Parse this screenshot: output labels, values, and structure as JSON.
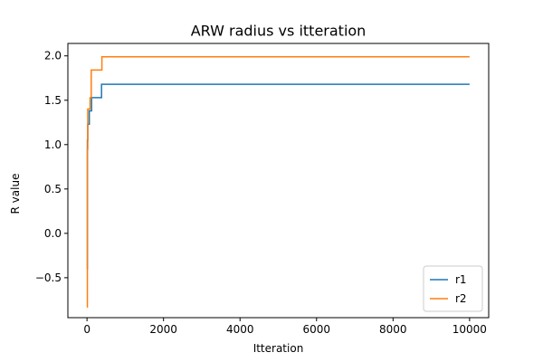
{
  "chart_data": {
    "type": "line",
    "title": "ARW radius vs itteration",
    "xlabel": "Itteration",
    "ylabel": "R value",
    "xlim": [
      -500,
      10500
    ],
    "ylim": [
      -0.95,
      2.14
    ],
    "xticks": [
      0,
      2000,
      4000,
      6000,
      8000,
      10000
    ],
    "xtick_labels": [
      "0",
      "2000",
      "4000",
      "6000",
      "8000",
      "10000"
    ],
    "yticks": [
      -0.5,
      0.0,
      0.5,
      1.0,
      1.5,
      2.0
    ],
    "ytick_labels": [
      "−0.5",
      "0.0",
      "0.5",
      "1.0",
      "1.5",
      "2.0"
    ],
    "grid": false,
    "legend_position": "lower-right",
    "series": [
      {
        "name": "r1",
        "color": "#1f77b4",
        "step": true,
        "x": [
          0,
          10,
          20,
          60,
          120,
          380,
          10000
        ],
        "y": [
          -0.4,
          1.05,
          1.23,
          1.38,
          1.53,
          1.68,
          1.68
        ]
      },
      {
        "name": "r2",
        "color": "#ff7f0e",
        "step": true,
        "x": [
          0,
          10,
          20,
          80,
          110,
          390,
          10000
        ],
        "y": [
          -0.83,
          0.95,
          1.4,
          1.53,
          1.84,
          1.99,
          1.99
        ]
      }
    ]
  }
}
